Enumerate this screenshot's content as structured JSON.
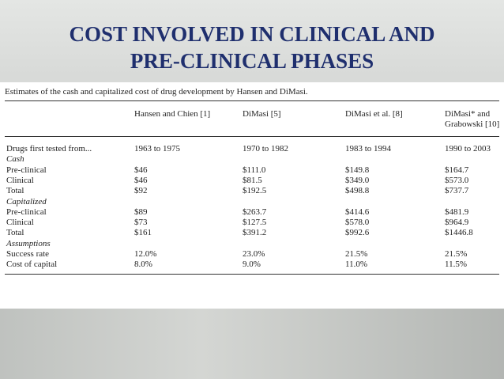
{
  "header": {
    "title_lines": [
      "COST INVOLVED IN CLINICAL AND",
      "PRE-CLINICAL PHASES"
    ]
  },
  "table": {
    "caption": "Estimates of the cash and capitalized cost of drug development by Hansen and DiMasi.",
    "columns": [
      "Hansen and Chien [1]",
      "DiMasi [5]",
      "DiMasi et al. [8]",
      "DiMasi* and Grabowski [10]"
    ],
    "first_row": [
      "Drugs first tested from...",
      "1963 to 1975",
      "1970 to 1982",
      "1983 to 1994",
      "1990 to 2003"
    ],
    "groups": [
      {
        "title": "Cash",
        "rows": [
          [
            "Pre-clinical",
            "$46",
            "$111.0",
            "$149.8",
            "$164.7"
          ],
          [
            "Clinical",
            "$46",
            "$81.5",
            "$349.0",
            "$573.0"
          ],
          [
            "Total",
            "$92",
            "$192.5",
            "$498.8",
            "$737.7"
          ]
        ]
      },
      {
        "title": "Capitalized",
        "rows": [
          [
            "Pre-clinical",
            "$89",
            "$263.7",
            "$414.6",
            "$481.9"
          ],
          [
            "Clinical",
            "$73",
            "$127.5",
            "$578.0",
            "$964.9"
          ],
          [
            "Total",
            "$161",
            "$391.2",
            "$992.6",
            "$1446.8"
          ]
        ]
      },
      {
        "title": "Assumptions",
        "rows": [
          [
            "Success rate",
            "12.0%",
            "23.0%",
            "21.5%",
            "21.5%"
          ],
          [
            "Cost of capital",
            "8.0%",
            "9.0%",
            "11.0%",
            "11.5%"
          ]
        ]
      }
    ]
  }
}
